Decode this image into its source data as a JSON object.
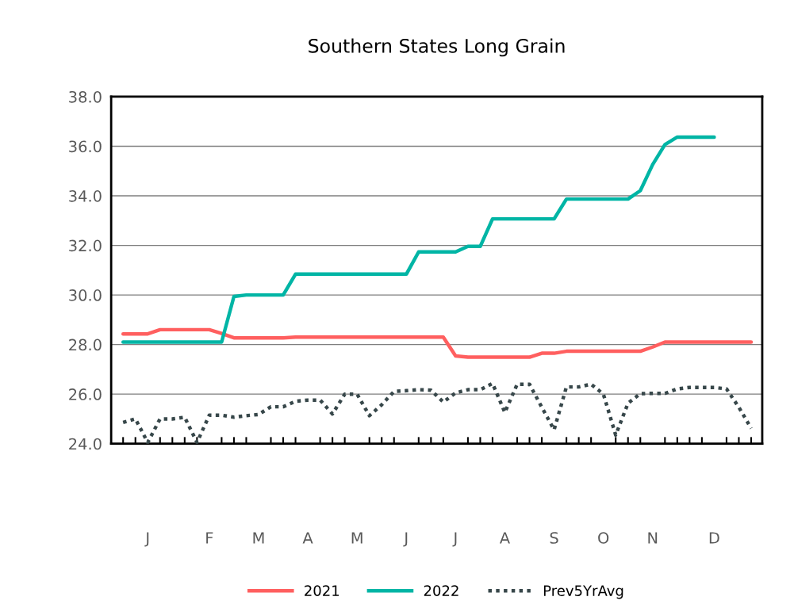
{
  "chart_data": {
    "type": "line",
    "title": "Southern States Long Grain",
    "categories": [
      null,
      null,
      "J",
      null,
      null,
      null,
      null,
      "F",
      null,
      null,
      null,
      "M",
      null,
      null,
      null,
      "A",
      null,
      null,
      null,
      "M",
      null,
      null,
      null,
      "J",
      null,
      null,
      null,
      "J",
      null,
      null,
      null,
      "A",
      null,
      null,
      null,
      "S",
      null,
      null,
      null,
      "O",
      null,
      null,
      null,
      "N",
      null,
      null,
      null,
      null,
      "D",
      null,
      null,
      null
    ],
    "ylim": [
      24,
      38
    ],
    "yticks": [
      {
        "value": 24,
        "label": "24.0"
      },
      {
        "value": 26,
        "label": "26.0"
      },
      {
        "value": 28,
        "label": "28.0"
      },
      {
        "value": 30,
        "label": "30.0"
      },
      {
        "value": 32,
        "label": "32.0"
      },
      {
        "value": 34,
        "label": "34.0"
      },
      {
        "value": 36,
        "label": "36.0"
      },
      {
        "value": 38,
        "label": "38.0"
      }
    ],
    "grid": "y",
    "legend": "bottom",
    "series": [
      {
        "name": "2021",
        "color": "#ff5f5f",
        "line_style": "solid",
        "values": [
          28.43,
          28.43,
          28.43,
          28.6,
          28.6,
          28.6,
          28.6,
          28.6,
          28.45,
          28.27,
          28.27,
          28.27,
          28.27,
          28.27,
          28.3,
          28.3,
          28.3,
          28.3,
          28.3,
          28.3,
          28.3,
          28.3,
          28.3,
          28.3,
          28.3,
          28.3,
          28.3,
          27.54,
          27.49,
          27.49,
          27.49,
          27.49,
          27.49,
          27.49,
          27.65,
          27.65,
          27.73,
          27.73,
          27.73,
          27.73,
          27.73,
          27.73,
          27.73,
          27.9,
          28.1,
          28.1,
          28.1,
          28.1,
          28.1,
          28.1,
          28.1,
          28.1
        ]
      },
      {
        "name": "2022",
        "color": "#00b5a5",
        "line_style": "solid",
        "values": [
          28.1,
          28.1,
          28.1,
          28.1,
          28.1,
          28.1,
          28.1,
          28.1,
          28.1,
          29.94,
          30.0,
          30.0,
          30.0,
          30.0,
          30.84,
          30.84,
          30.84,
          30.84,
          30.84,
          30.84,
          30.84,
          30.84,
          30.84,
          30.84,
          31.74,
          31.74,
          31.74,
          31.74,
          31.96,
          31.96,
          33.07,
          33.07,
          33.07,
          33.07,
          33.07,
          33.07,
          33.87,
          33.87,
          33.87,
          33.87,
          33.87,
          33.87,
          34.21,
          35.26,
          36.07,
          36.37,
          36.37,
          36.37,
          36.37,
          null,
          null,
          null
        ]
      },
      {
        "name": "Prev5YrAvg",
        "color": "#37474a",
        "line_style": "dotted",
        "values": [
          24.86,
          25.0,
          24.05,
          25.0,
          25.0,
          25.07,
          24.05,
          25.15,
          25.15,
          25.07,
          25.13,
          25.18,
          25.49,
          25.49,
          25.71,
          25.76,
          25.76,
          25.2,
          26.0,
          26.0,
          25.13,
          25.57,
          26.11,
          26.14,
          26.18,
          26.16,
          25.68,
          26.05,
          26.18,
          26.18,
          26.43,
          25.26,
          26.4,
          26.4,
          25.47,
          24.56,
          26.29,
          26.29,
          26.4,
          26.0,
          24.35,
          25.63,
          26.02,
          26.03,
          26.03,
          26.21,
          26.27,
          26.27,
          26.27,
          26.21,
          25.47,
          24.62
        ]
      }
    ]
  }
}
